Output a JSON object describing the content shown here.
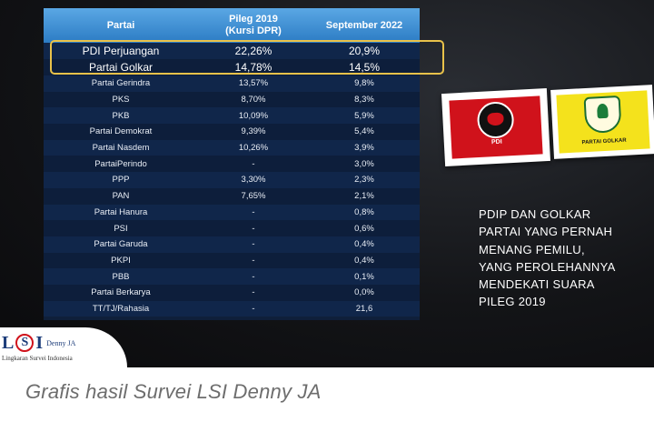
{
  "chart_data": {
    "type": "table",
    "columns": [
      "Partai",
      "Pileg 2019",
      "(Kursi DPR)",
      "September 2022"
    ],
    "rows": [
      {
        "party": "PDI Perjuangan",
        "pileg_2019": "22,26%",
        "september_2022": "20,9%"
      },
      {
        "party": "Partai Golkar",
        "pileg_2019": "14,78%",
        "september_2022": "14,5%"
      },
      {
        "party": "Partai Gerindra",
        "pileg_2019": "13,57%",
        "september_2022": "9,8%"
      },
      {
        "party": "PKS",
        "pileg_2019": "8,70%",
        "september_2022": "8,3%"
      },
      {
        "party": "PKB",
        "pileg_2019": "10,09%",
        "september_2022": "5,9%"
      },
      {
        "party": "Partai Demokrat",
        "pileg_2019": "9,39%",
        "september_2022": "5,4%"
      },
      {
        "party": "Partai Nasdem",
        "pileg_2019": "10,26%",
        "september_2022": "3,9%"
      },
      {
        "party": "PartaiPerindo",
        "pileg_2019": "-",
        "september_2022": "3,0%"
      },
      {
        "party": "PPP",
        "pileg_2019": "3,30%",
        "september_2022": "2,3%"
      },
      {
        "party": "PAN",
        "pileg_2019": "7,65%",
        "september_2022": "2,1%"
      },
      {
        "party": "Partai Hanura",
        "pileg_2019": "-",
        "september_2022": "0,8%"
      },
      {
        "party": "PSI",
        "pileg_2019": "-",
        "september_2022": "0,6%"
      },
      {
        "party": "Partai Garuda",
        "pileg_2019": "-",
        "september_2022": "0,4%"
      },
      {
        "party": "PKPI",
        "pileg_2019": "-",
        "september_2022": "0,4%"
      },
      {
        "party": "PBB",
        "pileg_2019": "-",
        "september_2022": "0,1%"
      },
      {
        "party": "Partai Berkarya",
        "pileg_2019": "-",
        "september_2022": "0,0%"
      },
      {
        "party": "TT/TJ/Rahasia",
        "pileg_2019": "-",
        "september_2022": "21,6"
      }
    ],
    "highlighted_rows": [
      "PDI Perjuangan",
      "Partai Golkar"
    ]
  },
  "side_text": [
    "PDIP DAN GOLKAR",
    "PARTAI YANG PERNAH",
    "MENANG PEMILU,",
    "YANG PEROLEHANNYA",
    "MENDEKATI SUARA",
    "PILEG 2019"
  ],
  "logos": {
    "pdi_label": "PDI",
    "golkar_label": "PARTAI GOLKAR"
  },
  "brand": {
    "l": "L",
    "s": "S",
    "i": "I",
    "denny": "Denny JA",
    "subtitle": "Lingkaran Survei Indonesia"
  },
  "caption": "Grafis hasil Survei LSI Denny JA",
  "colors": {
    "header": "#3b8ed6",
    "table_bg": "#0f1f3a",
    "highlight_border": "#e9c24a",
    "pdi_red": "#d0121b",
    "golkar_yellow": "#f4e21c"
  }
}
